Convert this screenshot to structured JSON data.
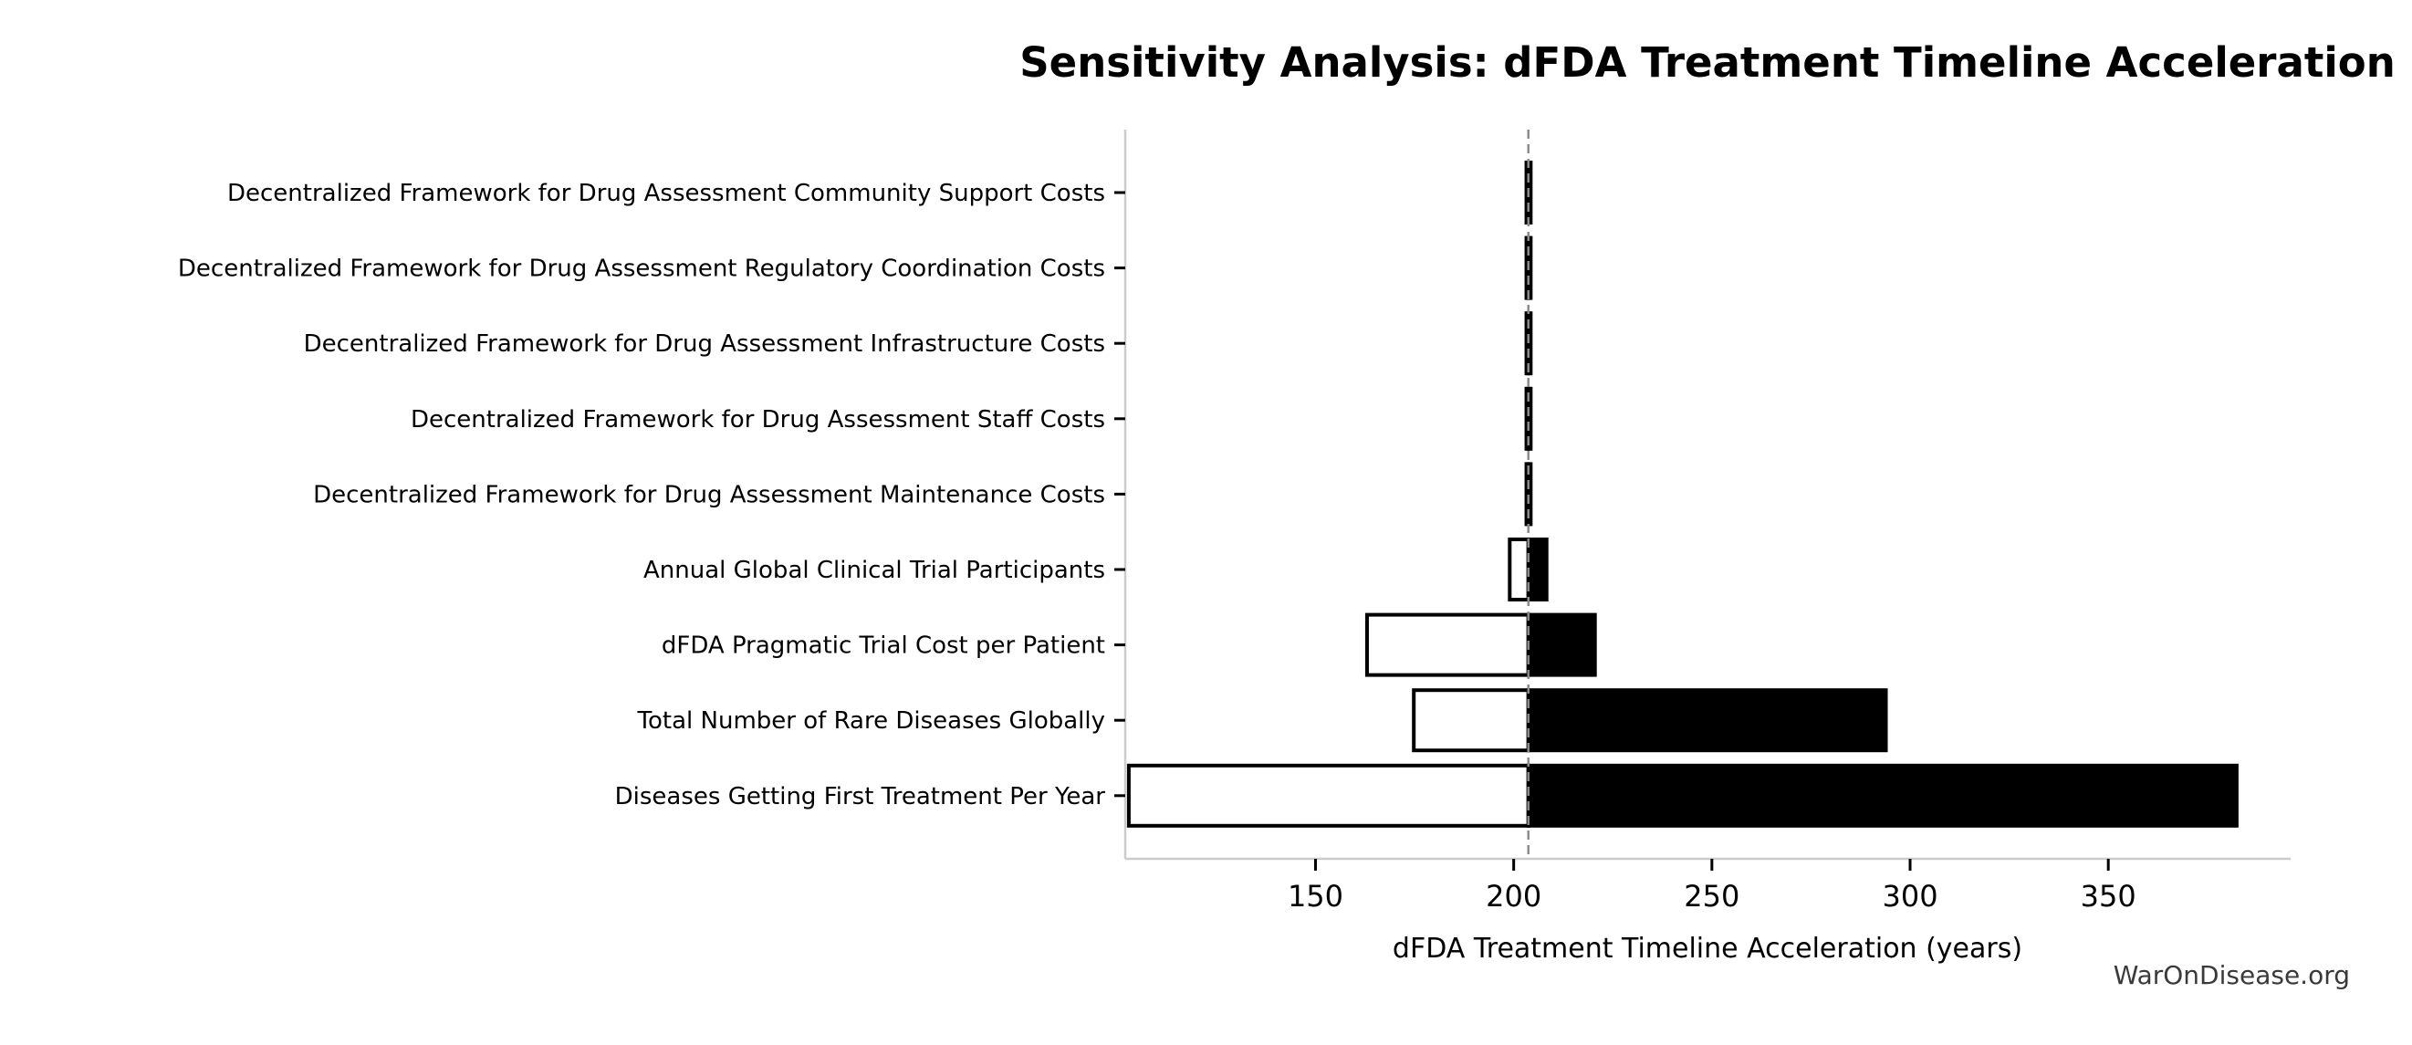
{
  "page": {
    "background_color": "#ffffff"
  },
  "chart_data": {
    "type": "bar",
    "variant": "tornado-sensitivity",
    "orientation": "horizontal",
    "title": "Sensitivity Analysis: dFDA Treatment Timeline Acceleration",
    "xlabel": "dFDA Treatment Timeline Acceleration (years)",
    "watermark": "WarOnDisease.org",
    "baseline": 203.7,
    "xlim": [
      102,
      396
    ],
    "xticks": [
      150,
      200,
      250,
      300,
      350
    ],
    "grid": false,
    "legend": null,
    "categories": [
      "Decentralized Framework for Drug Assessment Community Support Costs",
      "Decentralized Framework for Drug Assessment Regulatory Coordination Costs",
      "Decentralized Framework for Drug Assessment Infrastructure Costs",
      "Decentralized Framework for Drug Assessment Staff Costs",
      "Decentralized Framework for Drug Assessment Maintenance Costs",
      "Annual Global Clinical Trial Participants",
      "dFDA Pragmatic Trial Cost per Patient",
      "Total Number of Rare Diseases Globally",
      "Diseases Getting First Treatment Per Year"
    ],
    "series": [
      {
        "name": "low_estimate",
        "role": "bar-from-low-to-baseline",
        "fill": "#ffffff",
        "values": [
          203.2,
          203.2,
          203.2,
          203.2,
          203.2,
          199.0,
          163.0,
          174.8,
          102.9
        ]
      },
      {
        "name": "high_estimate",
        "role": "bar-from-baseline-to-high",
        "fill": "#000000",
        "values": [
          204.3,
          204.3,
          204.3,
          204.3,
          204.3,
          208.3,
          220.5,
          293.9,
          382.4
        ]
      }
    ],
    "colors": {
      "bar_low_fill": "#ffffff",
      "bar_high_fill": "#000000",
      "bar_edge": "#000000",
      "baseline_line": "#8c8c8c",
      "spine": "#cccccc",
      "tick": "#000000",
      "text": "#000000",
      "watermark_text": "#3a3a3a"
    }
  }
}
